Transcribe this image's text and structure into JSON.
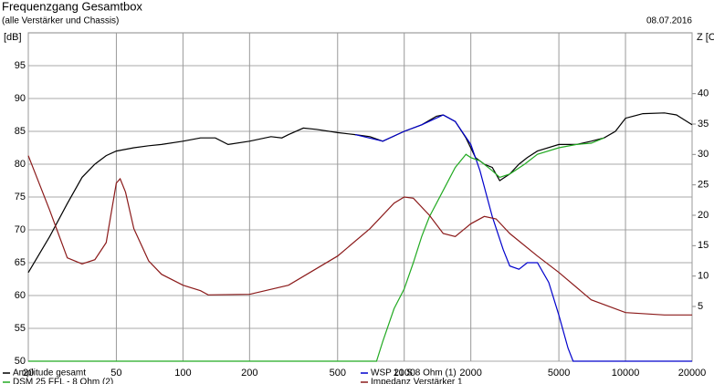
{
  "chart_data": {
    "type": "line",
    "title": "Frequenzgang Gesamtbox",
    "subtitle": "(alle Verstärker und Chassis)",
    "date": "08.07.2016",
    "y_label": "[dB]",
    "y2_label": "Z [Ohm]",
    "xscale": "log",
    "grid": true,
    "xlim": [
      20,
      20000
    ],
    "xticks": [
      20,
      50,
      100,
      200,
      500,
      1000,
      2000,
      5000,
      10000,
      20000
    ],
    "ylim": [
      50,
      100
    ],
    "yticks": [
      50,
      55,
      60,
      65,
      70,
      75,
      80,
      85,
      90,
      95
    ],
    "y2lim": [
      -4,
      50
    ],
    "y2ticks": [
      5,
      10,
      15,
      20,
      25,
      30,
      35,
      40
    ],
    "series": [
      {
        "name": "Amplitude gesamt",
        "color": "#000000",
        "x": [
          20,
          25,
          30,
          35,
          40,
          45,
          50,
          60,
          70,
          80,
          100,
          120,
          140,
          160,
          200,
          250,
          280,
          300,
          350,
          400,
          500,
          600,
          700,
          800,
          1000,
          1200,
          1400,
          1500,
          1700,
          1900,
          2100,
          2300,
          2500,
          2700,
          3000,
          3300,
          3600,
          4000,
          5000,
          6000,
          7000,
          8000,
          9000,
          10000,
          12000,
          15000,
          17000,
          20000
        ],
        "values": [
          63.5,
          69,
          74,
          78,
          80,
          81.3,
          82,
          82.5,
          82.8,
          83,
          83.5,
          84,
          84,
          83,
          83.5,
          84.2,
          84,
          84.5,
          85.5,
          85.3,
          84.8,
          84.5,
          84.2,
          83.5,
          85,
          86,
          87.3,
          87.5,
          86.5,
          84,
          81,
          80,
          79.5,
          77.5,
          78.5,
          80,
          81,
          82,
          83,
          83,
          83.5,
          84,
          85,
          87,
          87.7,
          87.8,
          87.5,
          86
        ]
      },
      {
        "name": "WSP 21 S 8 Ohm (1)",
        "color": "#0000cc",
        "x": [
          600,
          800,
          1000,
          1200,
          1500,
          1700,
          2000,
          2200,
          2500,
          2800,
          3000,
          3300,
          3600,
          4000,
          4500,
          5000,
          5500,
          5800,
          10000,
          20000
        ],
        "values": [
          84.5,
          83.5,
          85,
          86,
          87.5,
          86.5,
          83,
          79,
          72,
          67,
          64.5,
          64,
          65,
          65,
          62,
          57,
          52,
          50,
          50,
          50
        ]
      },
      {
        "name": "DSM 25 FFL - 8 Ohm (2)",
        "color": "#22aa22",
        "x": [
          20,
          750,
          800,
          900,
          1000,
          1100,
          1200,
          1300,
          1500,
          1700,
          1900,
          2000,
          2200,
          2500,
          2700,
          3000,
          3500,
          4000,
          5000,
          6000,
          7000,
          8000
        ],
        "values": [
          50,
          50,
          53,
          58,
          61,
          65,
          69,
          72,
          76,
          79.5,
          81.5,
          81,
          80.5,
          79,
          78,
          78.5,
          80,
          81.5,
          82.5,
          83,
          83.2,
          84
        ]
      },
      {
        "name": "Impedanz Verstärker 1",
        "color": "#8b1a1a",
        "axis": "y2",
        "x": [
          20,
          25,
          30,
          35,
          40,
          45,
          50,
          52,
          55,
          60,
          70,
          80,
          100,
          120,
          130,
          200,
          300,
          500,
          700,
          900,
          1000,
          1100,
          1300,
          1500,
          1700,
          2000,
          2300,
          2600,
          3000,
          4000,
          5000,
          7000,
          10000,
          15000,
          20000
        ],
        "values": [
          29.8,
          20.8,
          13,
          12,
          12.7,
          15.5,
          25.3,
          26,
          23.8,
          17.8,
          12.5,
          10.3,
          8.5,
          7.6,
          6.9,
          7,
          8.5,
          13.3,
          17.8,
          22,
          23,
          22.8,
          20,
          17,
          16.5,
          18.6,
          19.8,
          19.4,
          17,
          13.3,
          10.6,
          6.1,
          4,
          3.6,
          3.6
        ]
      }
    ]
  }
}
